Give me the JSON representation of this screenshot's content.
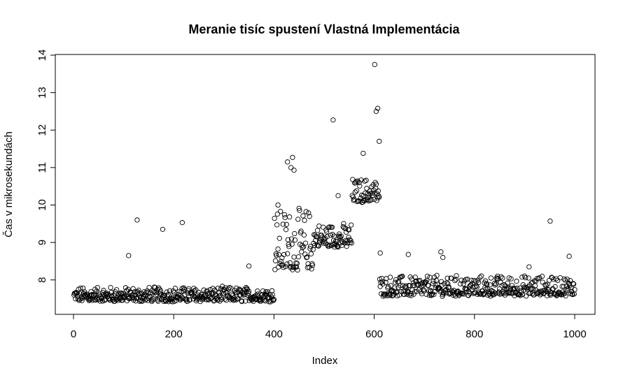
{
  "chart_data": {
    "type": "scatter",
    "title": "Meranie tisíc spustení Vlastná Implementácia",
    "xlabel": "Index",
    "ylabel": "Čas v mikrosekundách",
    "xlim": [
      0,
      1000
    ],
    "ylim": [
      7.1,
      14.0
    ],
    "xticks": [
      0,
      200,
      400,
      600,
      800,
      1000
    ],
    "yticks": [
      8,
      9,
      10,
      11,
      12,
      13,
      14
    ],
    "grid": false,
    "legend": "none",
    "marker": "open-circle",
    "point_color": "#000000",
    "segments": [
      {
        "x_start": 1,
        "x_end": 400,
        "base": 7.45,
        "spread": 0.35
      },
      {
        "x_start": 401,
        "x_end": 480,
        "base": 8.3,
        "spread": 1.6
      },
      {
        "x_start": 481,
        "x_end": 555,
        "base": 8.9,
        "spread": 0.6
      },
      {
        "x_start": 556,
        "x_end": 610,
        "base": 10.1,
        "spread": 0.6
      },
      {
        "x_start": 611,
        "x_end": 1000,
        "base": 7.6,
        "spread": 0.5
      }
    ],
    "notable_points": [
      {
        "x": 110,
        "y": 8.65
      },
      {
        "x": 127,
        "y": 9.6
      },
      {
        "x": 178,
        "y": 9.35
      },
      {
        "x": 217,
        "y": 9.53
      },
      {
        "x": 350,
        "y": 8.37
      },
      {
        "x": 408,
        "y": 10.0
      },
      {
        "x": 427,
        "y": 11.15
      },
      {
        "x": 434,
        "y": 11.0
      },
      {
        "x": 437,
        "y": 11.27
      },
      {
        "x": 440,
        "y": 10.93
      },
      {
        "x": 518,
        "y": 12.27
      },
      {
        "x": 528,
        "y": 10.25
      },
      {
        "x": 578,
        "y": 11.38
      },
      {
        "x": 601,
        "y": 13.75
      },
      {
        "x": 604,
        "y": 12.5
      },
      {
        "x": 607,
        "y": 12.58
      },
      {
        "x": 610,
        "y": 11.7
      },
      {
        "x": 612,
        "y": 8.72
      },
      {
        "x": 668,
        "y": 8.68
      },
      {
        "x": 733,
        "y": 8.75
      },
      {
        "x": 737,
        "y": 8.6
      },
      {
        "x": 951,
        "y": 9.57
      },
      {
        "x": 989,
        "y": 8.63
      },
      {
        "x": 909,
        "y": 8.35
      }
    ]
  }
}
